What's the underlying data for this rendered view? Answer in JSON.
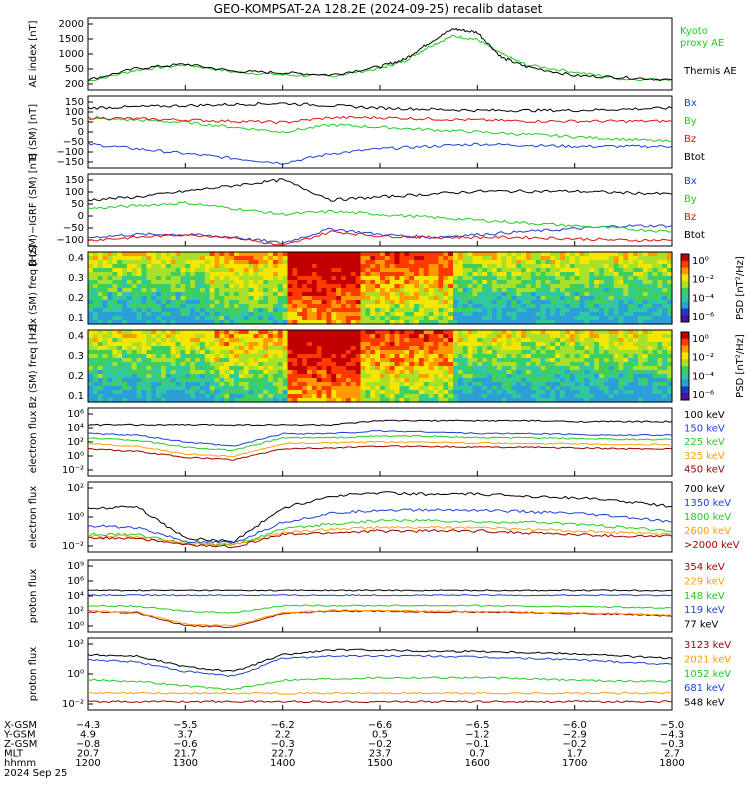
{
  "title": "GEO-KOMPSAT-2A 128.2E (2024-09-25) recalib dataset",
  "colors": {
    "black": "#000000",
    "blue": "#1f3fd6",
    "green": "#22cc22",
    "red": "#e01010",
    "orange": "#ffa000",
    "darkred": "#9b0000"
  },
  "chart_data": [
    {
      "type": "line",
      "ylabel": "AE index [nT]",
      "ylim": [
        0,
        2000
      ],
      "ticks": [
        "2000",
        "1500",
        "1000",
        "500",
        "200"
      ],
      "x": [
        1200,
        1230,
        1300,
        1330,
        1400,
        1430,
        1500,
        1515,
        1530,
        1545,
        1600,
        1615,
        1630,
        1700,
        1730,
        1800
      ],
      "series": [
        {
          "name": "Kyoto proxy AE",
          "color": "green",
          "values": [
            250,
            550,
            700,
            500,
            420,
            380,
            600,
            800,
            1200,
            1500,
            1400,
            1000,
            700,
            500,
            300,
            300
          ]
        },
        {
          "name": "Themis AE",
          "color": "black",
          "values": [
            280,
            600,
            720,
            520,
            480,
            420,
            650,
            850,
            1300,
            1700,
            1600,
            900,
            650,
            400,
            350,
            280
          ]
        }
      ]
    },
    {
      "type": "line",
      "ylabel": "B (SM) [nT]",
      "ylim": [
        -150,
        150
      ],
      "ticks": [
        "150",
        "100",
        "50",
        "0",
        "−50",
        "−100",
        "−150"
      ],
      "legend": [
        "Bx",
        "By",
        "Bz",
        "Btot"
      ],
      "x": [
        1200,
        1230,
        1300,
        1330,
        1400,
        1430,
        1500,
        1530,
        1600,
        1630,
        1700,
        1730,
        1800
      ],
      "series": [
        {
          "name": "Bx",
          "color": "blue",
          "values": [
            -50,
            -70,
            -90,
            -110,
            -130,
            -90,
            -70,
            -60,
            -50,
            -55,
            -60,
            -60,
            -60
          ]
        },
        {
          "name": "By",
          "color": "green",
          "values": [
            55,
            50,
            40,
            20,
            0,
            30,
            20,
            10,
            0,
            -10,
            -20,
            -30,
            -40
          ]
        },
        {
          "name": "Bz",
          "color": "red",
          "values": [
            60,
            55,
            50,
            45,
            40,
            60,
            60,
            55,
            50,
            45,
            45,
            45,
            45
          ]
        },
        {
          "name": "Btot",
          "color": "black",
          "values": [
            100,
            105,
            110,
            115,
            120,
            110,
            100,
            95,
            90,
            90,
            90,
            95,
            100
          ]
        }
      ]
    },
    {
      "type": "line",
      "ylabel": "B (SM)−IGRF (SM) [nT]",
      "ylim": [
        -100,
        150
      ],
      "ticks": [
        "150",
        "100",
        "50",
        "0",
        "−50",
        "−100"
      ],
      "legend": [
        "Bx",
        "By",
        "Bz",
        "Btot"
      ],
      "x": [
        1200,
        1230,
        1300,
        1330,
        1400,
        1430,
        1500,
        1530,
        1600,
        1630,
        1700,
        1730,
        1800
      ],
      "series": [
        {
          "name": "Bx",
          "color": "blue",
          "values": [
            -70,
            -60,
            -60,
            -70,
            -90,
            -40,
            -60,
            -70,
            -60,
            -50,
            -40,
            -30,
            -30
          ]
        },
        {
          "name": "By",
          "color": "green",
          "values": [
            30,
            40,
            50,
            30,
            10,
            20,
            10,
            0,
            -10,
            -20,
            -30,
            -40,
            -50
          ]
        },
        {
          "name": "Bz",
          "color": "red",
          "values": [
            -80,
            -70,
            -60,
            -70,
            -100,
            -50,
            -65,
            -70,
            -70,
            -70,
            -75,
            -80,
            -80
          ]
        },
        {
          "name": "Btot",
          "color": "black",
          "values": [
            60,
            70,
            90,
            110,
            130,
            60,
            70,
            80,
            90,
            90,
            90,
            85,
            80
          ]
        }
      ]
    },
    {
      "type": "heatmap",
      "ylabel": "Bx (SM) freq [Hz]",
      "ylim": [
        0,
        0.5
      ],
      "ticks": [
        "0.4",
        "0.3",
        "0.2",
        "0.1"
      ],
      "colorbar_label": "PSD [nT²/Hz]",
      "colorbar_ticks": [
        "10⁰",
        "10⁻²",
        "10⁻⁴",
        "10⁻⁶"
      ]
    },
    {
      "type": "heatmap",
      "ylabel": "Bz (SM) freq [Hz]",
      "ylim": [
        0,
        0.5
      ],
      "ticks": [
        "0.4",
        "0.3",
        "0.2",
        "0.1"
      ],
      "colorbar_label": "PSD [nT²/Hz]",
      "colorbar_ticks": [
        "10⁰",
        "10⁻²",
        "10⁻⁴",
        "10⁻⁶"
      ]
    },
    {
      "type": "line",
      "ylabel": "electron flux",
      "ticks": [
        "10⁶",
        "10⁴",
        "10²",
        "10⁰",
        "10⁻²"
      ],
      "legend": [
        "100 keV",
        "150 keV",
        "225 keV",
        "325 keV",
        "450 keV"
      ],
      "x": [
        1200,
        1230,
        1300,
        1330,
        1400,
        1430,
        1500,
        1530,
        1600,
        1630,
        1700,
        1730,
        1800
      ],
      "series": [
        {
          "name": "100 keV",
          "color": "black",
          "values": [
            4,
            4,
            4,
            4,
            4,
            4,
            4.5,
            4.5,
            4.5,
            4.5,
            4.4,
            4.4,
            4.4
          ]
        },
        {
          "name": "150 keV",
          "color": "blue",
          "values": [
            3,
            2.8,
            2.0,
            1.5,
            3,
            3,
            3.3,
            3.2,
            3,
            3,
            2.9,
            2.8,
            2.8
          ]
        },
        {
          "name": "225 keV",
          "color": "green",
          "values": [
            2.5,
            2.2,
            1.4,
            1.0,
            2.5,
            2.5,
            2.7,
            2.7,
            2.5,
            2.5,
            2.4,
            2.3,
            2.3
          ]
        },
        {
          "name": "325 keV",
          "color": "orange",
          "values": [
            1.8,
            1.5,
            0.6,
            0.3,
            1.8,
            1.9,
            2.0,
            2.0,
            1.9,
            1.8,
            1.8,
            1.7,
            1.7
          ]
        },
        {
          "name": "450 keV",
          "color": "darkred",
          "values": [
            1.2,
            0.9,
            0.2,
            -0.1,
            1.2,
            1.3,
            1.5,
            1.5,
            1.4,
            1.4,
            1.3,
            1.2,
            1.2
          ]
        }
      ]
    },
    {
      "type": "line",
      "ylabel": "electron flux",
      "ticks": [
        "10²",
        "10⁰",
        "10⁻²"
      ],
      "legend": [
        "700 keV",
        "1350 keV",
        "1800 keV",
        "2600 keV",
        ">2000 keV"
      ],
      "x": [
        1200,
        1230,
        1300,
        1330,
        1400,
        1430,
        1500,
        1530,
        1600,
        1630,
        1700,
        1730,
        1800
      ],
      "series": [
        {
          "name": "700 keV",
          "color": "black",
          "values": [
            0.5,
            0.6,
            -1.2,
            -1.4,
            0.5,
            1.2,
            1.4,
            1.3,
            1.3,
            1.2,
            1.1,
            0.9,
            0.6
          ]
        },
        {
          "name": "1350 keV",
          "color": "blue",
          "values": [
            -0.5,
            -0.6,
            -1.4,
            -1.5,
            -0.3,
            0.2,
            0.4,
            0.4,
            0.4,
            0.3,
            0.2,
            0.0,
            -0.3
          ]
        },
        {
          "name": "1800 keV",
          "color": "green",
          "values": [
            -1.0,
            -1.0,
            -1.5,
            -1.6,
            -0.7,
            -0.4,
            -0.2,
            -0.2,
            -0.3,
            -0.3,
            -0.4,
            -0.6,
            -0.8
          ]
        },
        {
          "name": "2600 keV",
          "color": "orange",
          "values": [
            -1.1,
            -1.1,
            -1.5,
            -1.6,
            -0.9,
            -0.7,
            -0.6,
            -0.6,
            -0.6,
            -0.7,
            -0.8,
            -0.9,
            -1.0
          ]
        },
        {
          "name": ">2000 keV",
          "color": "darkred",
          "values": [
            -1.2,
            -1.2,
            -1.6,
            -1.7,
            -1.0,
            -0.9,
            -0.8,
            -0.8,
            -0.8,
            -0.9,
            -1.0,
            -1.1,
            -1.1
          ]
        }
      ]
    },
    {
      "type": "line",
      "ylabel": "proton flux",
      "ticks": [
        "10⁹",
        "10⁶",
        "10⁴",
        "10²",
        "10⁰"
      ],
      "legend": [
        "354 keV",
        "229 keV",
        "148 keV",
        "119 keV",
        "77 keV"
      ],
      "x": [
        1200,
        1230,
        1300,
        1330,
        1400,
        1430,
        1500,
        1530,
        1600,
        1630,
        1700,
        1730,
        1800
      ],
      "series": [
        {
          "name": "354 keV",
          "color": "darkred",
          "values": [
            2.5,
            2.4,
            0.8,
            0.6,
            2.3,
            2.6,
            2.6,
            2.5,
            2.5,
            2.4,
            2.3,
            2.2,
            2.0
          ]
        },
        {
          "name": "229 keV",
          "color": "orange",
          "values": [
            2.6,
            2.5,
            1.0,
            0.8,
            2.4,
            2.7,
            2.7,
            2.6,
            2.6,
            2.5,
            2.4,
            2.3,
            2.1
          ]
        },
        {
          "name": "148 keV",
          "color": "green",
          "values": [
            3.3,
            3.2,
            2.6,
            2.4,
            3.3,
            3.3,
            3.3,
            3.3,
            3.3,
            3.2,
            3.2,
            3.1,
            3.0
          ]
        },
        {
          "name": "119 keV",
          "color": "blue",
          "values": [
            4.6,
            4.6,
            4.6,
            4.6,
            4.6,
            4.6,
            4.6,
            4.6,
            4.6,
            4.6,
            4.6,
            4.6,
            4.6
          ]
        },
        {
          "name": "77 keV",
          "color": "black",
          "values": [
            5.2,
            5.2,
            5.2,
            5.2,
            5.2,
            5.2,
            5.2,
            5.2,
            5.2,
            5.2,
            5.2,
            5.2,
            5.2
          ]
        }
      ]
    },
    {
      "type": "line",
      "ylabel": "proton flux",
      "ticks": [
        "10²",
        "10⁰",
        "10⁻²"
      ],
      "legend": [
        "3123 keV",
        "2021 keV",
        "1052 keV",
        "681 keV",
        "548 keV"
      ],
      "x": [
        1200,
        1230,
        1300,
        1330,
        1400,
        1430,
        1500,
        1530,
        1600,
        1630,
        1700,
        1730,
        1800
      ],
      "series": [
        {
          "name": "3123 keV",
          "color": "darkred",
          "values": [
            -3.3,
            -3.3,
            -3.3,
            -3.3,
            -3.3,
            -3.3,
            -3.3,
            -3.3,
            -3.3,
            -3.3,
            -3.3,
            -3.3,
            -3.3
          ]
        },
        {
          "name": "2021 keV",
          "color": "orange",
          "values": [
            -2.6,
            -2.6,
            -2.6,
            -2.6,
            -2.6,
            -2.6,
            -2.6,
            -2.6,
            -2.6,
            -2.6,
            -2.6,
            -2.6,
            -2.6
          ]
        },
        {
          "name": "1052 keV",
          "color": "green",
          "values": [
            -1.5,
            -1.6,
            -2.0,
            -2.3,
            -1.5,
            -1.4,
            -1.3,
            -1.3,
            -1.3,
            -1.4,
            -1.5,
            -1.6,
            -1.6
          ]
        },
        {
          "name": "681 keV",
          "color": "blue",
          "values": [
            0.2,
            0.0,
            -0.8,
            -1.2,
            0.3,
            0.5,
            0.5,
            0.5,
            0.4,
            0.3,
            0.2,
            0.0,
            -0.2
          ]
        },
        {
          "name": "548 keV",
          "color": "black",
          "values": [
            0.6,
            0.5,
            -0.4,
            -0.8,
            0.6,
            1.0,
            1.0,
            0.9,
            0.9,
            0.8,
            0.7,
            0.5,
            0.3
          ]
        }
      ]
    }
  ],
  "axis_rows": [
    {
      "label": "X-GSM",
      "values": [
        "−4.3",
        "−5.5",
        "−6.2",
        "−6.6",
        "−6.5",
        "−6.0",
        "−5.0"
      ]
    },
    {
      "label": "Y-GSM",
      "values": [
        "4.9",
        "3.7",
        "2.2",
        "0.5",
        "−1.2",
        "−2.9",
        "−4.3"
      ]
    },
    {
      "label": "Z-GSM",
      "values": [
        "−0.8",
        "−0.6",
        "−0.3",
        "−0.2",
        "−0.1",
        "−0.2",
        "−0.3"
      ]
    },
    {
      "label": "MLT",
      "values": [
        "20.7",
        "21.7",
        "22.7",
        "23.7",
        "0.7",
        "1.7",
        "2.7"
      ]
    },
    {
      "label": "hhmm",
      "values": [
        "1200",
        "1300",
        "1400",
        "1500",
        "1600",
        "1700",
        "1800"
      ]
    }
  ],
  "date_label": "2024 Sep 25"
}
